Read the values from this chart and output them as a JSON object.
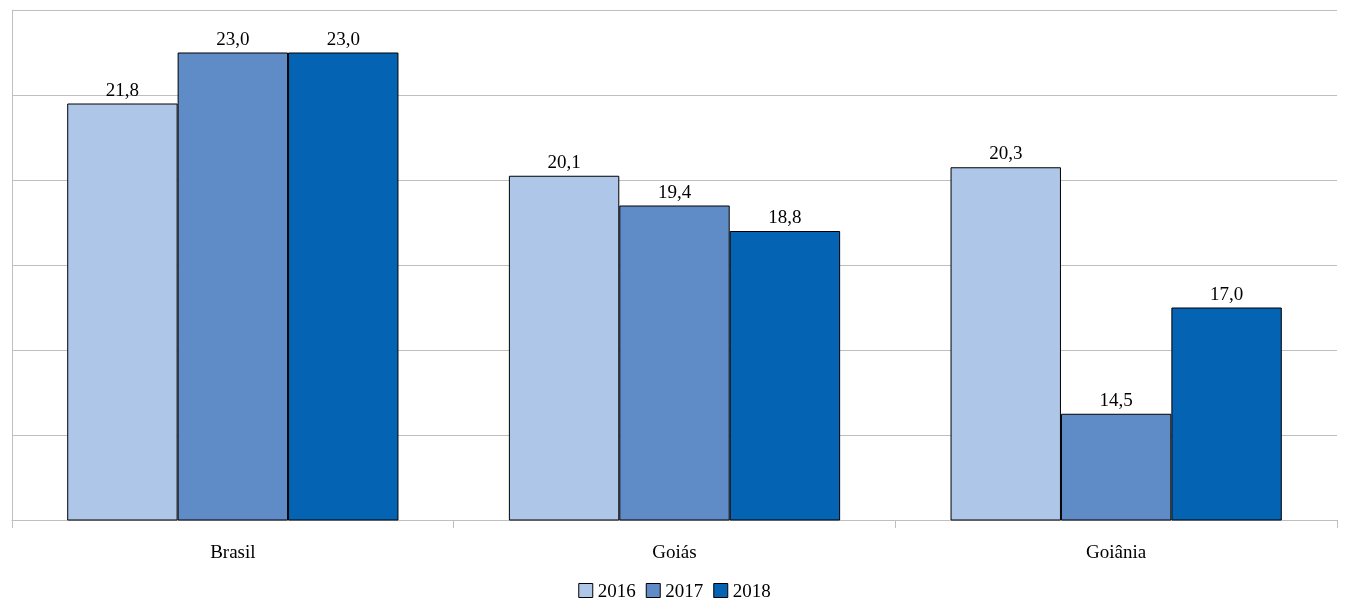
{
  "chart_data": {
    "type": "bar",
    "categories": [
      "Brasil",
      "Goiás",
      "Goiânia"
    ],
    "series": [
      {
        "name": "2016",
        "color": "#aec6e8",
        "values": [
          21.8,
          20.1,
          20.3
        ],
        "value_labels": [
          "21,8",
          "20,1",
          "20,3"
        ]
      },
      {
        "name": "2017",
        "color": "#5f8bc7",
        "values": [
          23.0,
          19.4,
          14.5
        ],
        "value_labels": [
          "23,0",
          "19,4",
          "14,5"
        ]
      },
      {
        "name": "2018",
        "color": "#0563b3",
        "values": [
          23.0,
          18.8,
          17.0
        ],
        "value_labels": [
          "23,0",
          "18,8",
          "17,0"
        ]
      }
    ],
    "ylim": [
      12,
      24
    ],
    "yticks": [
      12,
      14,
      16,
      18,
      20,
      22,
      24
    ],
    "tick_labels": "x",
    "grid": "y",
    "legend": "bottom"
  }
}
